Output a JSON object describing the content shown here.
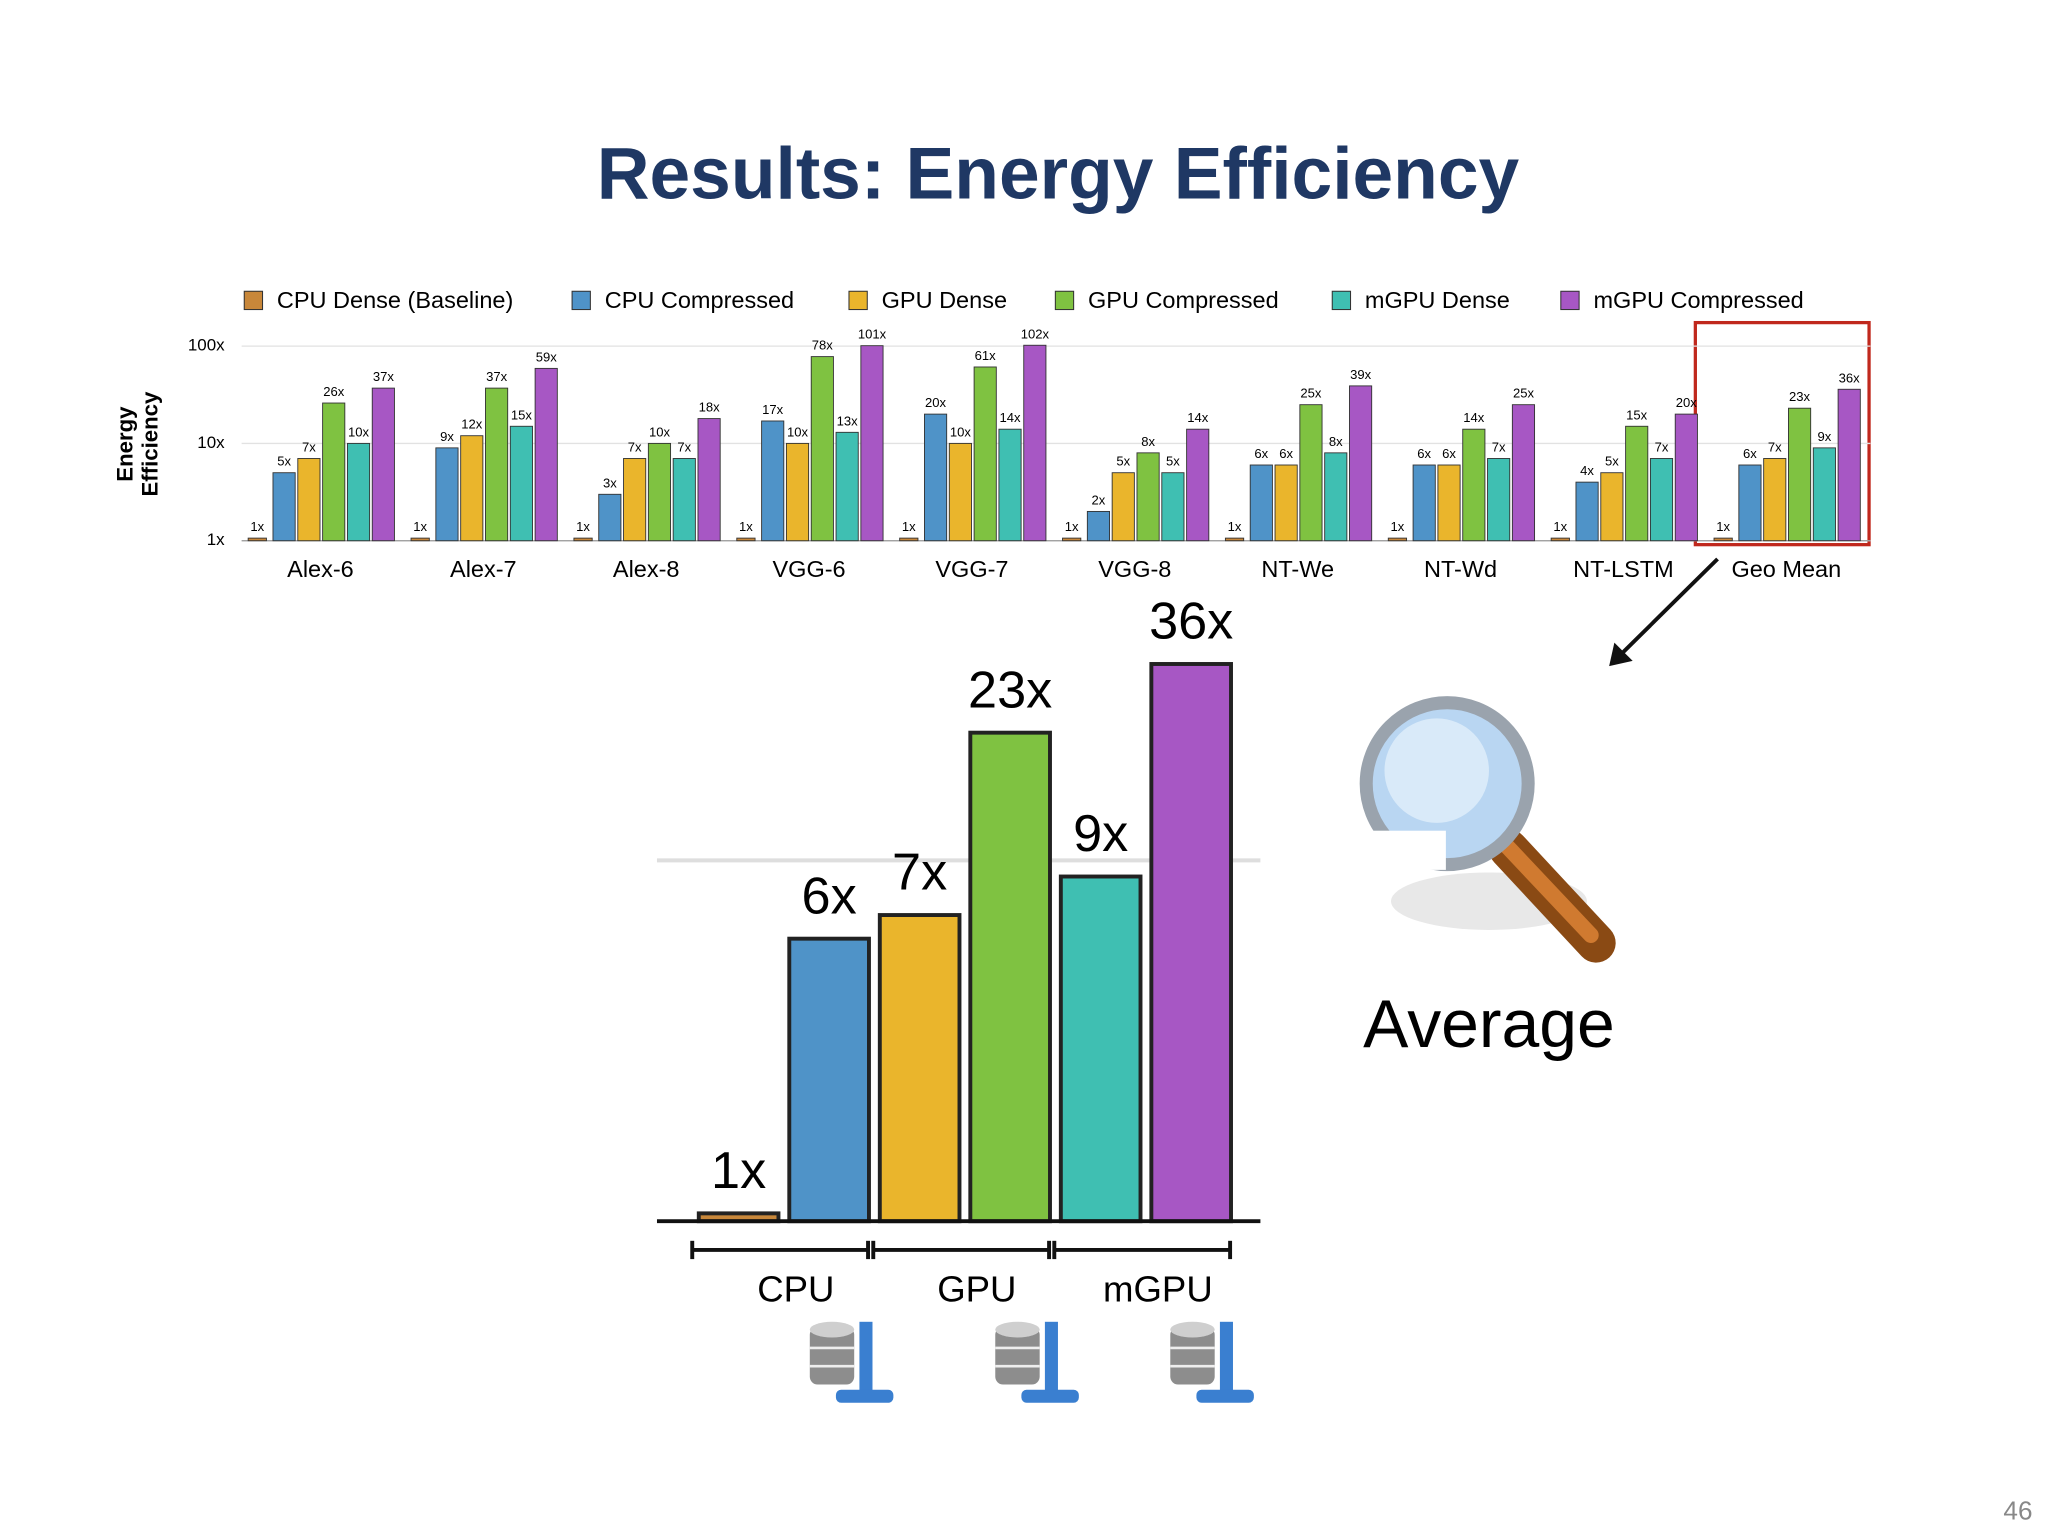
{
  "title": "Results: Energy Efficiency",
  "annotation": "Average",
  "page_number": "46",
  "chart_data": [
    {
      "type": "bar",
      "ylabel": [
        "Energy",
        "Efficiency"
      ],
      "categories": [
        "Alex-6",
        "Alex-7",
        "Alex-8",
        "VGG-6",
        "VGG-7",
        "VGG-8",
        "NT-We",
        "NT-Wd",
        "NT-LSTM",
        "Geo Mean"
      ],
      "series": [
        {
          "name": "CPU Dense (Baseline)",
          "color": "#c8873a",
          "values": [
            1,
            1,
            1,
            1,
            1,
            1,
            1,
            1,
            1,
            1
          ],
          "value_labels": [
            "1x",
            "1x",
            "1x",
            "1x",
            "1x",
            "1x",
            "1x",
            "1x",
            "1x",
            "1x"
          ]
        },
        {
          "name": "CPU Compressed",
          "color": "#4f93c8",
          "values": [
            5,
            9,
            3,
            17,
            20,
            2,
            6,
            6,
            4,
            6
          ],
          "value_labels": [
            "5x",
            "9x",
            "3x",
            "17x",
            "20x",
            "2x",
            "6x",
            "6x",
            "4x",
            "6x"
          ]
        },
        {
          "name": "GPU Dense",
          "color": "#eab52c",
          "values": [
            7,
            12,
            7,
            10,
            10,
            5,
            6,
            6,
            5,
            7
          ],
          "value_labels": [
            "7x",
            "12x",
            "7x",
            "10x",
            "10x",
            "5x",
            "6x",
            "6x",
            "5x",
            "7x"
          ]
        },
        {
          "name": "GPU Compressed",
          "color": "#7fc241",
          "values": [
            26,
            37,
            10,
            78,
            61,
            8,
            25,
            14,
            15,
            23
          ],
          "value_labels": [
            "26x",
            "37x",
            "10x",
            "78x",
            "61x",
            "8x",
            "25x",
            "14x",
            "15x",
            "23x"
          ]
        },
        {
          "name": "mGPU Dense",
          "color": "#3fbfb2",
          "values": [
            10,
            15,
            7,
            13,
            14,
            5,
            8,
            7,
            7,
            9
          ],
          "value_labels": [
            "10x",
            "15x",
            "7x",
            "13x",
            "14x",
            "5x",
            "8x",
            "7x",
            "7x",
            "9x"
          ]
        },
        {
          "name": "mGPU Compressed",
          "color": "#a757c4",
          "values": [
            37,
            59,
            18,
            101,
            102,
            14,
            39,
            25,
            20,
            36
          ],
          "value_labels": [
            "37x",
            "59x",
            "18x",
            "101x",
            "102x",
            "14x",
            "39x",
            "25x",
            "20x",
            "36x"
          ]
        }
      ],
      "ylim": [
        1,
        105
      ],
      "yticks": [
        {
          "value": 1,
          "label": "1x"
        },
        {
          "value": 10,
          "label": "10x"
        },
        {
          "value": 100,
          "label": "100x"
        }
      ],
      "log_scale": true,
      "grid": true,
      "legend": "top"
    },
    {
      "type": "bar",
      "groups": [
        "CPU",
        "GPU",
        "mGPU"
      ],
      "values": [
        1,
        6,
        7,
        23,
        9,
        36
      ],
      "value_labels": [
        "1x",
        "6x",
        "7x",
        "23x",
        "9x",
        "36x"
      ],
      "colors": [
        "#c8873a",
        "#4f93c8",
        "#eab52c",
        "#7fc241",
        "#3fbfb2",
        "#a757c4"
      ],
      "ylim": [
        0.95,
        40
      ],
      "yticks": [
        10
      ],
      "show_tick_labels": false,
      "log_scale": true,
      "grid": true
    }
  ]
}
